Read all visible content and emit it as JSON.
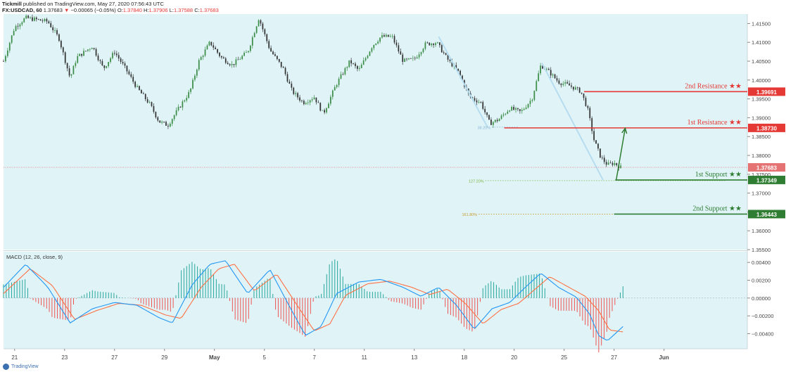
{
  "header": {
    "publisher": "Tickmill",
    "published_text": "published on TradingView.com, May 27, 2020 07:56:43 UTC",
    "symbol": "FX:USDCAD, 60",
    "last": "1.37683",
    "change_arrow": "▼",
    "change": "−0.00065 (−0.05%)",
    "o_label": "O:",
    "o": "1.37840",
    "h_label": "H:",
    "h": "1.37906",
    "l_label": "L:",
    "l": "1.37588",
    "c_label": "C:",
    "c": "1.37683"
  },
  "footer": {
    "brand": "TradingView"
  },
  "colors": {
    "panel_bg": "#e0f4f8",
    "up_candle": "#3c8d47",
    "down_candle": "#333333",
    "resistance": "#e53935",
    "support": "#2e7d32",
    "fib_line": "#b6dcf0",
    "macd_line": "#2196f3",
    "signal_line": "#ff7043",
    "hist_pos": "#26a69a",
    "hist_neg": "#ef5350"
  },
  "chart_data": {
    "type": "line",
    "price_axis": {
      "min": 1.355,
      "max": 1.4175,
      "ticks": [
        "1.41500",
        "1.41000",
        "1.40500",
        "1.40000",
        "1.39500",
        "1.39000",
        "1.38500",
        "1.38000",
        "1.37500",
        "1.37000",
        "1.36500",
        "1.36000",
        "1.35500"
      ]
    },
    "x_axis": {
      "labels": [
        "21",
        "23",
        "27",
        "29",
        "May",
        "5",
        "7",
        "11",
        "13",
        "18",
        "20",
        "25",
        "27",
        "Jun"
      ]
    },
    "price_waypoints": [
      [
        0,
        1.405
      ],
      [
        0.5,
        1.414
      ],
      [
        1,
        1.4165
      ],
      [
        2,
        1.4155
      ],
      [
        2.5,
        1.411
      ],
      [
        3,
        1.4005
      ],
      [
        3.3,
        1.406
      ],
      [
        4,
        1.409
      ],
      [
        4.5,
        1.403
      ],
      [
        5,
        1.4075
      ],
      [
        5.6,
        1.402
      ],
      [
        6,
        1.398
      ],
      [
        6.6,
        1.3935
      ],
      [
        7,
        1.389
      ],
      [
        7.4,
        1.388
      ],
      [
        8,
        1.3935
      ],
      [
        8.4,
        1.397
      ],
      [
        8.8,
        1.405
      ],
      [
        9.3,
        1.41
      ],
      [
        9.8,
        1.406
      ],
      [
        10.3,
        1.404
      ],
      [
        11,
        1.4075
      ],
      [
        11.5,
        1.4165
      ],
      [
        12,
        1.408
      ],
      [
        12.6,
        1.403
      ],
      [
        13,
        1.397
      ],
      [
        13.5,
        1.394
      ],
      [
        14,
        1.3955
      ],
      [
        14.4,
        1.391
      ],
      [
        15,
        1.399
      ],
      [
        15.6,
        1.405
      ],
      [
        16,
        1.4025
      ],
      [
        16.6,
        1.409
      ],
      [
        17,
        1.4115
      ],
      [
        17.5,
        1.4115
      ],
      [
        18,
        1.405
      ],
      [
        18.5,
        1.4055
      ],
      [
        19,
        1.4095
      ],
      [
        19.5,
        1.41
      ],
      [
        20,
        1.4055
      ],
      [
        20.5,
        1.402
      ],
      [
        21,
        1.3955
      ],
      [
        21.5,
        1.394
      ],
      [
        21.9,
        1.3885
      ],
      [
        22.3,
        1.3895
      ],
      [
        22.8,
        1.3925
      ],
      [
        23.3,
        1.3915
      ],
      [
        23.8,
        1.395
      ],
      [
        24.2,
        1.404
      ],
      [
        24.6,
        1.402
      ],
      [
        25,
        1.3995
      ],
      [
        25.5,
        1.3985
      ],
      [
        26,
        1.397
      ],
      [
        26.3,
        1.3925
      ],
      [
        26.6,
        1.384
      ],
      [
        26.9,
        1.3795
      ],
      [
        27.2,
        1.3775
      ],
      [
        27.5,
        1.378
      ],
      [
        27.8,
        1.37683
      ]
    ],
    "horizontal_levels": [
      {
        "name": "2nd Resistance ★★",
        "price": 1.39691,
        "label": "1.39691",
        "color": "resistance",
        "from_x": 26.15
      },
      {
        "name": "1st Resistance ★★",
        "price": 1.3873,
        "label": "1.38730",
        "color": "resistance",
        "from_x": 22.55
      },
      {
        "name": "1st Support ★★",
        "price": 1.37349,
        "label": "1.37349",
        "color": "support",
        "from_x": 27.55
      },
      {
        "name": "2nd Support ★★",
        "price": 1.36443,
        "label": "1.36443",
        "color": "support",
        "from_x": 27.5
      }
    ],
    "current_price": {
      "price": 1.37683,
      "label": "1.37683"
    },
    "fib_levels": [
      {
        "label": "38.20%",
        "price": 1.3875,
        "from_x": 22.0,
        "to_x": 23.2
      },
      {
        "label": "127.20%",
        "price": 1.3733,
        "from_x": 21.7,
        "to_x": 32.5
      },
      {
        "label": "161.80%",
        "price": 1.36443,
        "from_x": 21.4,
        "to_x": 32.5
      }
    ],
    "fib_drawings": [
      [
        [
          19.6,
          1.4115
        ],
        [
          21.8,
          1.3875
        ]
      ],
      [
        [
          24.25,
          1.4045
        ],
        [
          27.0,
          1.3735
        ]
      ]
    ],
    "projection_arrow": {
      "from": [
        27.6,
        1.3736
      ],
      "to": [
        28.0,
        1.3872
      ]
    },
    "macd": {
      "title": "MACD (12, 26, close, 9)",
      "axis": {
        "min": -0.0057,
        "max": 0.0052,
        "ticks": [
          "0.00400",
          "0.00200",
          "0.00000",
          "−0.00200",
          "−0.00400"
        ]
      },
      "macd_waypoints": [
        [
          0,
          0.0012
        ],
        [
          1,
          0.0038
        ],
        [
          2,
          0.0012
        ],
        [
          3,
          -0.0028
        ],
        [
          4,
          -0.0012
        ],
        [
          5,
          -0.0005
        ],
        [
          6,
          -0.0008
        ],
        [
          7,
          -0.0022
        ],
        [
          7.6,
          -0.0028
        ],
        [
          8.5,
          0.0015
        ],
        [
          9.3,
          0.0038
        ],
        [
          10,
          0.0042
        ],
        [
          11,
          0.0005
        ],
        [
          12,
          0.0032
        ],
        [
          13,
          -0.0015
        ],
        [
          13.6,
          -0.0042
        ],
        [
          14.3,
          -0.0032
        ],
        [
          15,
          0.0005
        ],
        [
          16,
          0.0018
        ],
        [
          17,
          0.0021
        ],
        [
          18,
          0.0012
        ],
        [
          18.8,
          0.0002
        ],
        [
          19.6,
          0.0012
        ],
        [
          20.4,
          -0.0008
        ],
        [
          21.2,
          -0.0035
        ],
        [
          22,
          -0.0012
        ],
        [
          22.8,
          -0.0005
        ],
        [
          23.5,
          0.0012
        ],
        [
          24.2,
          0.0028
        ],
        [
          25,
          0.0012
        ],
        [
          25.8,
          0.0001
        ],
        [
          26.4,
          -0.0018
        ],
        [
          26.8,
          -0.0042
        ],
        [
          27.2,
          -0.0048
        ],
        [
          27.9,
          -0.0032
        ]
      ],
      "signal_waypoints": [
        [
          0,
          0.0005
        ],
        [
          1.2,
          0.0033
        ],
        [
          2.2,
          0.0014
        ],
        [
          3.2,
          -0.0024
        ],
        [
          4.2,
          -0.0014
        ],
        [
          5.2,
          -0.0006
        ],
        [
          6.2,
          -0.0008
        ],
        [
          7.3,
          -0.0019
        ],
        [
          8,
          -0.0023
        ],
        [
          8.9,
          0.0012
        ],
        [
          9.7,
          0.0033
        ],
        [
          10.4,
          0.0038
        ],
        [
          11.3,
          0.0008
        ],
        [
          12.3,
          0.0027
        ],
        [
          13.3,
          -0.0011
        ],
        [
          14,
          -0.0037
        ],
        [
          14.7,
          -0.0029
        ],
        [
          15.4,
          0.0003
        ],
        [
          16.4,
          0.0016
        ],
        [
          17.4,
          0.0019
        ],
        [
          18.4,
          0.0012
        ],
        [
          19.2,
          0.0004
        ],
        [
          20,
          0.001
        ],
        [
          20.8,
          -0.0006
        ],
        [
          21.6,
          -0.0029
        ],
        [
          22.4,
          -0.0013
        ],
        [
          23.2,
          -0.0006
        ],
        [
          23.9,
          0.0009
        ],
        [
          24.6,
          0.0024
        ],
        [
          25.4,
          0.0013
        ],
        [
          26.2,
          0.0002
        ],
        [
          26.8,
          -0.0014
        ],
        [
          27.3,
          -0.0036
        ],
        [
          27.9,
          -0.0038
        ]
      ]
    }
  }
}
